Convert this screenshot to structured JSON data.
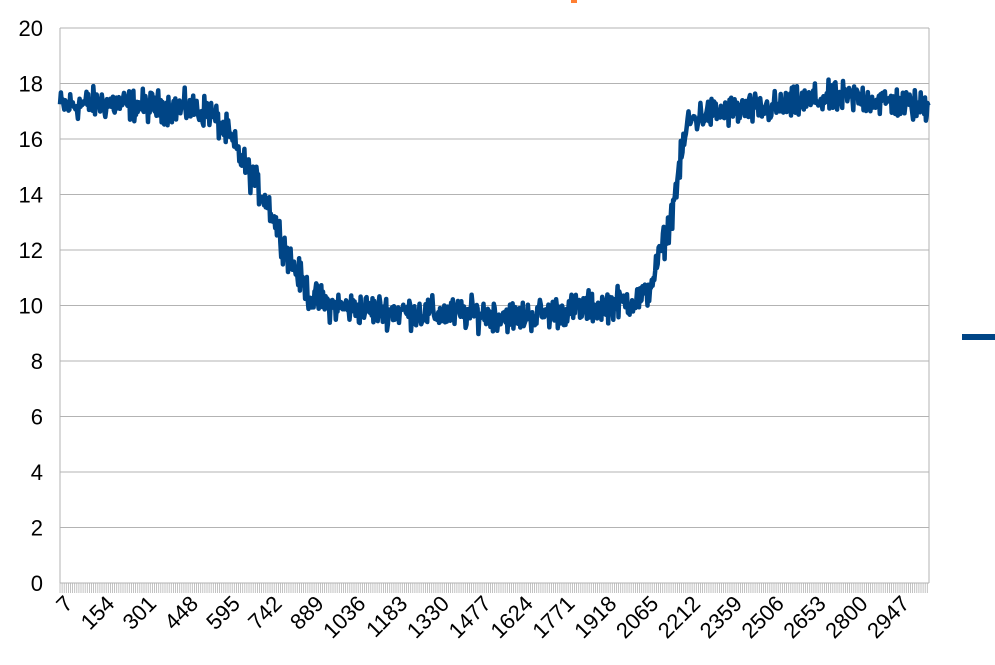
{
  "chart_data": {
    "type": "line",
    "title": "",
    "xlabel": "",
    "ylabel": "",
    "ylim": [
      0,
      20
    ],
    "yticks": [
      "0",
      "2",
      "4",
      "6",
      "8",
      "10",
      "12",
      "14",
      "16",
      "18",
      "20"
    ],
    "xlim": [
      7,
      3060
    ],
    "xtick_labels": [
      "7",
      "154",
      "301",
      "448",
      "595",
      "742",
      "889",
      "1036",
      "1183",
      "1330",
      "1477",
      "1624",
      "1771",
      "1918",
      "2065",
      "2212",
      "2359",
      "2506",
      "2653",
      "2800",
      "2947"
    ],
    "grid": true,
    "legend_position": "right",
    "series": [
      {
        "color": "#004586",
        "noise_amplitude": 0.4,
        "x": [
          7,
          154,
          301,
          448,
          530,
          595,
          660,
          742,
          800,
          860,
          889,
          960,
          1036,
          1183,
          1330,
          1477,
          1624,
          1771,
          1918,
          2065,
          2100,
          2150,
          2212,
          2270,
          2359,
          2506,
          2653,
          2800,
          2947,
          3060
        ],
        "values": [
          17.2,
          17.3,
          17.2,
          17.1,
          17.0,
          16.2,
          15.0,
          13.6,
          12.0,
          10.8,
          10.3,
          10.0,
          9.9,
          9.8,
          9.7,
          9.7,
          9.6,
          9.8,
          10.0,
          10.3,
          11.3,
          13.0,
          16.6,
          16.9,
          17.0,
          17.1,
          17.4,
          17.5,
          17.3,
          17.1
        ]
      }
    ]
  },
  "colors": {
    "series": "#004586",
    "title_accent": "#ff7f32",
    "grid": "#b3b3b3",
    "axis": "#b3b3b3"
  }
}
